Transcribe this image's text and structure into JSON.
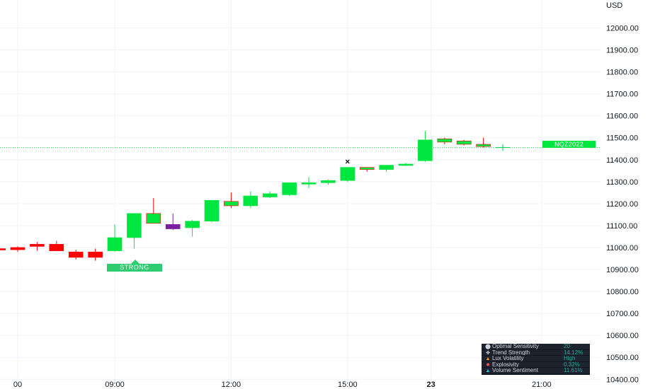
{
  "chart_data": {
    "type": "candlestick",
    "currency": "USD",
    "y_ticks": [
      10400,
      10500,
      10600,
      10700,
      10800,
      10900,
      11000,
      11100,
      11200,
      11300,
      11400,
      11500,
      11600,
      11700,
      11800,
      11900,
      12000
    ],
    "y_tick_labels": [
      "10400.00",
      "10500.00",
      "10600.00",
      "10700.00",
      "10800.00",
      "10900.00",
      "11000.00",
      "11100.00",
      "11200.00",
      "11300.00",
      "11400.00",
      "11500.00",
      "11600.00",
      "11700.00",
      "11800.00",
      "11900.00",
      "12000.00"
    ],
    "ylim": [
      10388,
      12127
    ],
    "x_tick_labels": [
      {
        "label": "00",
        "bar": -5,
        "bold": false
      },
      {
        "label": "09:00",
        "bar": 0,
        "bold": false
      },
      {
        "label": "12:00",
        "bar": 6,
        "bold": false
      },
      {
        "label": "15:00",
        "bar": 12,
        "bold": false
      },
      {
        "label": "23",
        "bar": 16.3,
        "bold": true
      },
      {
        "label": "21:00",
        "bar": 22,
        "bold": false
      }
    ],
    "grid": true,
    "last_price": 11455,
    "symbol_label": "NQZ2022",
    "candles": [
      {
        "o": 10995,
        "h": 11000,
        "l": 10990,
        "c": 10990,
        "color": "red"
      },
      {
        "o": 11000,
        "h": 11005,
        "l": 10980,
        "c": 10990,
        "color": "red"
      },
      {
        "o": 11015,
        "h": 11025,
        "l": 10985,
        "c": 11005,
        "color": "red"
      },
      {
        "o": 11015,
        "h": 11030,
        "l": 10985,
        "c": 10985,
        "color": "red"
      },
      {
        "o": 10980,
        "h": 10990,
        "l": 10945,
        "c": 10955,
        "color": "red"
      },
      {
        "o": 10980,
        "h": 10995,
        "l": 10940,
        "c": 10955,
        "color": "red"
      },
      {
        "o": 10985,
        "h": 11105,
        "l": 10980,
        "c": 11045,
        "color": "green"
      },
      {
        "o": 11045,
        "h": 11155,
        "l": 10995,
        "c": 11155,
        "color": "green"
      },
      {
        "o": 11155,
        "h": 11225,
        "l": 11110,
        "c": 11110,
        "color": "red_green"
      },
      {
        "o": 11105,
        "h": 11155,
        "l": 11080,
        "c": 11085,
        "color": "purple"
      },
      {
        "o": 11090,
        "h": 11125,
        "l": 11050,
        "c": 11120,
        "color": "green"
      },
      {
        "o": 11120,
        "h": 11215,
        "l": 11115,
        "c": 11215,
        "color": "green"
      },
      {
        "o": 11210,
        "h": 11250,
        "l": 11180,
        "c": 11190,
        "color": "red_green"
      },
      {
        "o": 11190,
        "h": 11255,
        "l": 11180,
        "c": 11235,
        "color": "green"
      },
      {
        "o": 11230,
        "h": 11255,
        "l": 11225,
        "c": 11245,
        "color": "green"
      },
      {
        "o": 11240,
        "h": 11295,
        "l": 11235,
        "c": 11295,
        "color": "green"
      },
      {
        "o": 11290,
        "h": 11320,
        "l": 11270,
        "c": 11295,
        "color": "green"
      },
      {
        "o": 11295,
        "h": 11310,
        "l": 11285,
        "c": 11305,
        "color": "green"
      },
      {
        "o": 11305,
        "h": 11365,
        "l": 11300,
        "c": 11365,
        "color": "green"
      },
      {
        "o": 11365,
        "h": 11365,
        "l": 11345,
        "c": 11355,
        "color": "red_green"
      },
      {
        "o": 11355,
        "h": 11375,
        "l": 11345,
        "c": 11375,
        "color": "green"
      },
      {
        "o": 11375,
        "h": 11385,
        "l": 11370,
        "c": 11380,
        "color": "green"
      },
      {
        "o": 11395,
        "h": 11530,
        "l": 11390,
        "c": 11490,
        "color": "green"
      },
      {
        "o": 11495,
        "h": 11500,
        "l": 11470,
        "c": 11480,
        "color": "red_green"
      },
      {
        "o": 11485,
        "h": 11490,
        "l": 11465,
        "c": 11470,
        "color": "red_green"
      },
      {
        "o": 11470,
        "h": 11500,
        "l": 11455,
        "c": 11460,
        "color": "red_green"
      },
      {
        "o": 11455,
        "h": 11470,
        "l": 11440,
        "c": 11455,
        "color": "doji"
      }
    ],
    "signals": [
      {
        "bar": 6,
        "text": "STRONG",
        "type": "buy"
      },
      {
        "bar": 18,
        "text": "×",
        "type": "cross"
      }
    ]
  },
  "stats_table": {
    "rows": [
      {
        "icon": "optimal-sensitivity-icon",
        "glyph": "⬤",
        "label": "Optimal Sensitivity",
        "value": "20"
      },
      {
        "icon": "trend-strength-icon",
        "glyph": "✤",
        "label": "Trend Strength",
        "value": "14.12%"
      },
      {
        "icon": "lux-volatility-icon",
        "glyph": "▲",
        "label": "Lux Volatility",
        "value": "High"
      },
      {
        "icon": "explosivity-icon",
        "glyph": "✸",
        "label": "Explosivity",
        "value": "0.32%"
      },
      {
        "icon": "volume-sentiment-icon",
        "glyph": "▲",
        "label": "Volume Sentiment",
        "value": "11.61%"
      }
    ]
  }
}
